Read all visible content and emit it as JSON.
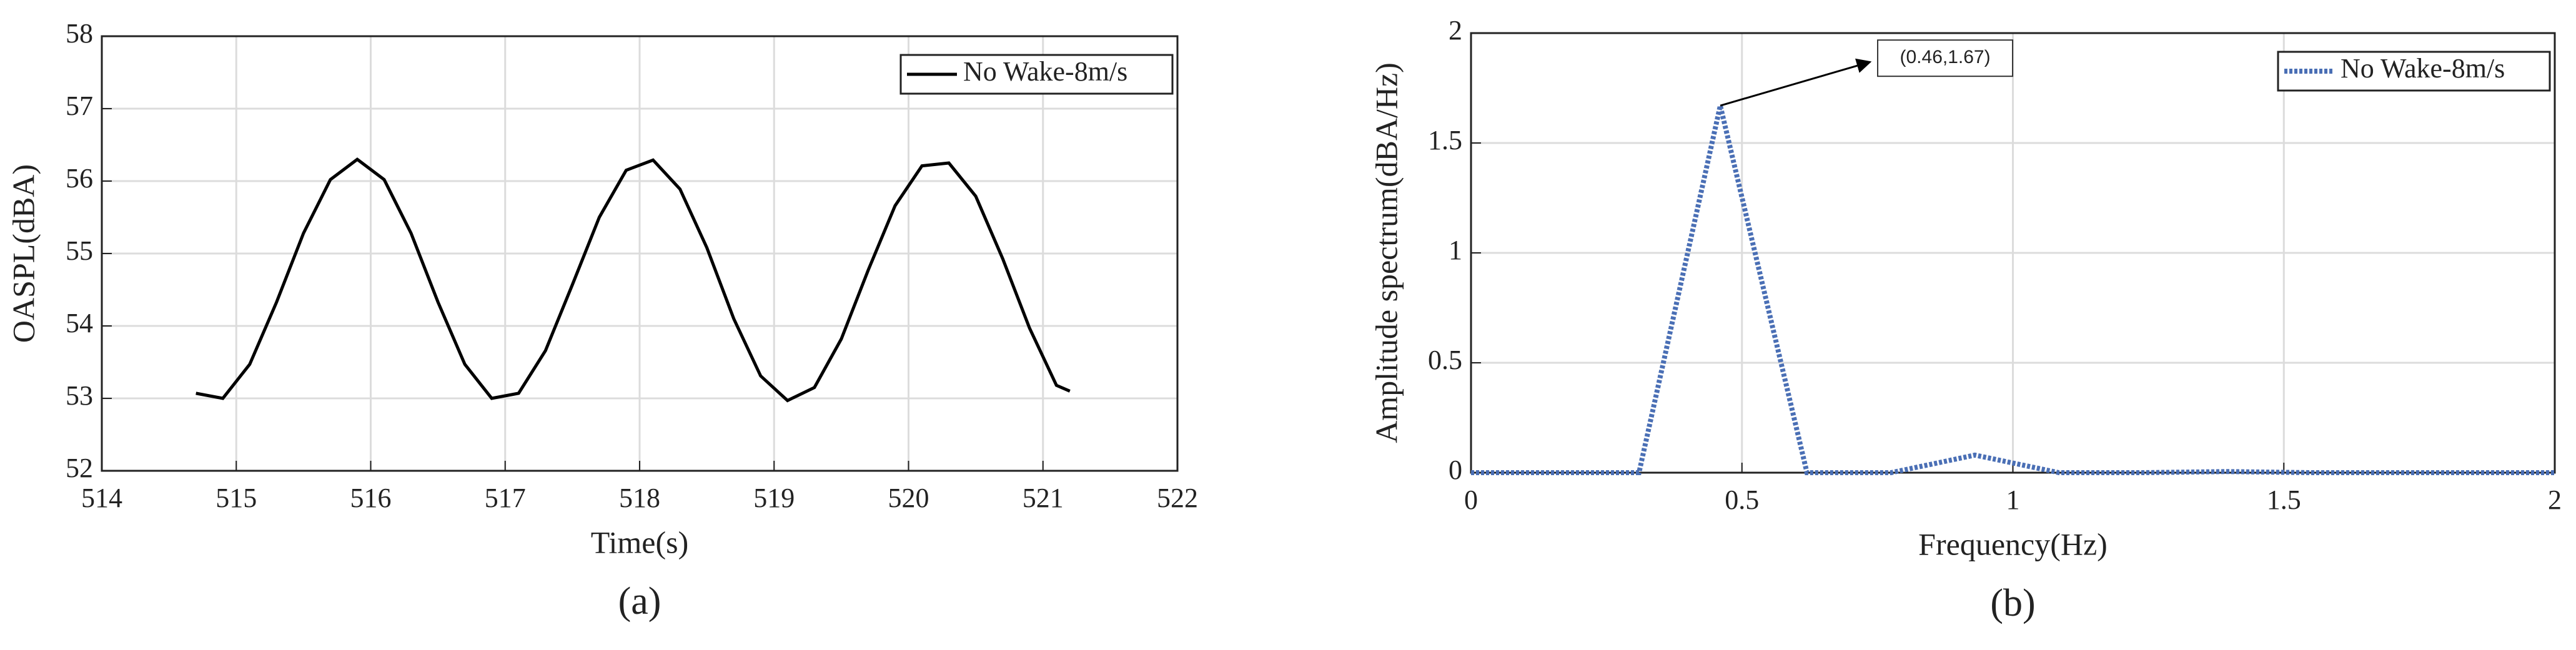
{
  "chart_data": [
    {
      "type": "line",
      "subfigure_label": "(a)",
      "x_label": "Time(s)",
      "y_label": "OASPL(dBA)",
      "x": [
        514.7,
        514.9,
        515.1,
        515.3,
        515.5,
        515.7,
        515.9,
        516.1,
        516.3,
        516.5,
        516.7,
        516.9,
        517.1,
        517.3,
        517.5,
        517.7,
        517.9,
        518.1,
        518.3,
        518.5,
        518.7,
        518.9,
        519.1,
        519.3,
        519.5,
        519.7,
        519.9,
        520.1,
        520.3,
        520.5,
        520.7,
        520.9,
        521.1,
        521.2
      ],
      "series": [
        {
          "name": "No Wake-8m/s",
          "color": "#000000",
          "line_style": "solid",
          "values": [
            53.07,
            53.0,
            53.47,
            54.33,
            55.28,
            56.02,
            56.3,
            56.02,
            55.28,
            54.33,
            53.47,
            53.0,
            53.07,
            53.66,
            54.57,
            55.5,
            56.15,
            56.29,
            55.89,
            55.08,
            54.1,
            53.31,
            52.97,
            53.15,
            53.82,
            54.77,
            55.66,
            56.21,
            56.25,
            55.79,
            54.93,
            53.97,
            53.18,
            53.1
          ]
        }
      ],
      "xlim": [
        514,
        522
      ],
      "xticks": [
        514,
        515,
        516,
        517,
        518,
        519,
        520,
        521,
        522
      ],
      "ylim": [
        52,
        58
      ],
      "yticks": [
        52,
        53,
        54,
        55,
        56,
        57,
        58
      ],
      "grid": true,
      "legend": "top-right"
    },
    {
      "type": "line",
      "subfigure_label": "(b)",
      "x_label": "Frequency(Hz)",
      "y_label": "Amplitude spectrum(dBA/Hz)",
      "x": [
        0,
        0.155,
        0.31,
        0.46,
        0.62,
        0.775,
        0.93,
        1.085,
        1.24,
        1.395,
        1.55,
        1.705,
        1.86,
        2
      ],
      "series": [
        {
          "name": "No Wake-8m/s",
          "color": "#4a6fb5",
          "line_style": "dotted",
          "values": [
            0,
            0,
            0,
            1.67,
            0,
            0,
            0.08,
            0,
            0,
            0.005,
            0,
            0,
            0,
            0
          ]
        }
      ],
      "xlim": [
        0,
        2
      ],
      "xticks": [
        0,
        0.5,
        1,
        1.5,
        2
      ],
      "ylim": [
        0,
        2
      ],
      "yticks": [
        0,
        0.5,
        1,
        1.5,
        2
      ],
      "grid": true,
      "legend": "top-right",
      "annotations": [
        {
          "text": "(0.46,1.67)",
          "x": 0.46,
          "y": 1.67
        }
      ]
    }
  ]
}
